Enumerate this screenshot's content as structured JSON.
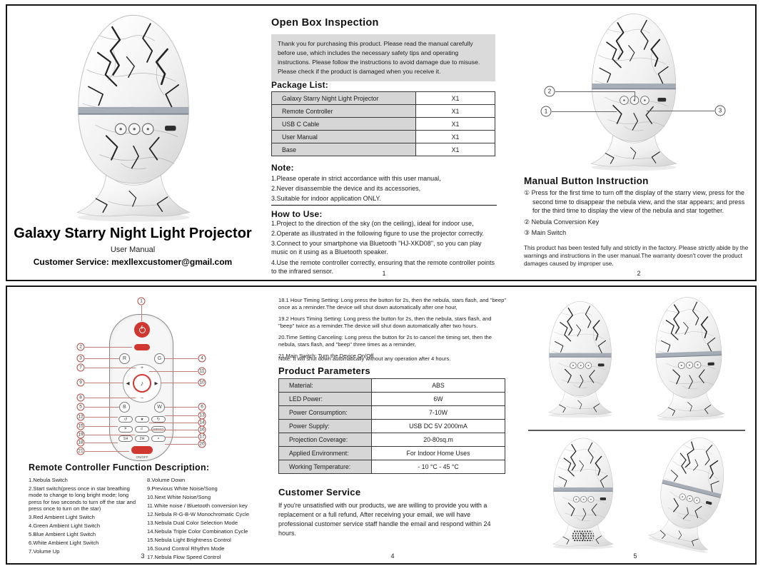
{
  "cover": {
    "title": "Galaxy Starry Night Light Projector",
    "subtitle": "User Manual",
    "customer_service": "Customer Service: mexllexcustomer@gmail.com"
  },
  "open_box": {
    "heading": "Open Box Inspection",
    "intro": "Thank you for purchasing this product. Please read the manual carefully before use, which includes the necessary safety tips and operating instructions. Please follow the instructions to avoid damage due to misuse. Please check if the product is damaged when you receive it.",
    "package_heading": "Package List:",
    "package_rows": [
      [
        "Galaxy Starry Night Light Projector",
        "X1"
      ],
      [
        "Remote Controller",
        "X1"
      ],
      [
        "USB C Cable",
        "X1"
      ],
      [
        "User Manual",
        "X1"
      ],
      [
        "Base",
        "X1"
      ]
    ],
    "note_heading": "Note:",
    "note_items": [
      "1.Please operate in strict accordance with this user manual,",
      "2.Never disassemble the device and its accessories,",
      "3.Suitable for indoor application ONLY."
    ],
    "howto_heading": "How to Use:",
    "howto_items": [
      "1.Project to the direction of the sky (on the ceiling), ideal for indoor use,",
      "2.Operate as illustrated in the following figure to use the projector correctly.",
      "3.Connect to your smartphone via Bluetooth \"HJ-XKD08\", so you can play music on it using as a Bluetooth speaker.",
      "4.Use the remote controller correctly, ensuring that the remote controller points to the infrared sensor."
    ],
    "page_number": "1"
  },
  "button_instruction": {
    "heading": "Manual Button Instruction",
    "items": [
      "① Press for the first time to turn off the display of the starry view, press for the second time to disappear the nebula view, and the star appears; and press for the third time to display the view of the nebula and star together.",
      "② Nebula Conversion Key",
      "③ Main Switch"
    ],
    "warranty": "This product has been tested fully and strictly in the factory. Please strictly abide by the warnings and instructions in the user manual.The warranty doesn't cover the product damages caused by improper use.",
    "egg_callouts": [
      "1",
      "2",
      "3"
    ],
    "page_number": "2"
  },
  "remote": {
    "heading": "Remote Controller Function Description:",
    "functions_left": [
      "1.Nebula Switch",
      "2.Start switch(press once in star breathing mode to change to long bright mode; long press for two seconds to turn off the star and press once to turn on the star)",
      "3.Red Ambient Light Switch",
      "4.Green Ambient Light Switch",
      "5.Blue Ambient Light Switch",
      "6.White Ambient Light Switch",
      "7.Volume Up"
    ],
    "functions_right": [
      "8.Volume Down",
      "9.Previous White Noise/Song",
      "10.Next White Noise/Song",
      "11.White noise / Bluetooth conversion key",
      "12.Nebula R-G-B-W Monochromatic Cycle",
      "13.Nebula Dual Color Selection Mode",
      "14.Nebula Triple Color Combination Cycle",
      "15.Nebula Light Brightness Control",
      "16.Sound Control Rhythm Mode",
      "17.Nebula Flow Speed Control"
    ],
    "callouts": [
      "1",
      "2",
      "3",
      "4",
      "5",
      "6",
      "7",
      "8",
      "9",
      "10",
      "11",
      "12",
      "13",
      "14",
      "15",
      "16",
      "17",
      "18",
      "19",
      "20",
      "21"
    ],
    "buttons": {
      "r": "R",
      "g": "G",
      "b": "B",
      "w": "W",
      "timer1": "1H",
      "timer2": "2H",
      "speed": "SPEED",
      "onoff": "ON/OFF"
    },
    "page_number": "3"
  },
  "parameters": {
    "timing_items": [
      "18.1 Hour Timing Setting: Long press the button for 2s, then the nebula, stars flash, and \"beep\" once as a reminder.The device will shut down automatically after one hour,",
      "19.2 Hours Timing Setting: Long press the button for 2s, then the nebula, stars flash, and \"beep\" twice as a reminder.The device will shut down automatically after two hours.",
      "20.Time Setting Canceling: Long press the button for 2s to cancel the timing set, then the nebula, stars flash, and \"beep\" three times as a reminder,",
      "21.Main Switch: Turn the Device On/Off"
    ],
    "timing_note": "Note: It will shut down automatically without any operation after 4 hours.",
    "heading": "Product Parameters",
    "rows": [
      [
        "Material:",
        "ABS"
      ],
      [
        "LED Power:",
        "6W"
      ],
      [
        "Power Consumption:",
        "7-10W"
      ],
      [
        "Power Supply:",
        "USB DC 5V 2000mA"
      ],
      [
        "Projection Coverage:",
        "20-80sq.m"
      ],
      [
        "Applied Environment:",
        "For Indoor Home Uses"
      ],
      [
        "Working Temperature:",
        "- 10 °C - 45 °C"
      ]
    ],
    "cs_heading": "Customer Service",
    "cs_text": "If you're unsatisfied with our products, we are willing to provide you with a replacement or a full refund, After receiving your email, we will have professional customer service staff handle the email and respond within 24 hours.",
    "page_number": "4"
  },
  "gallery": {
    "page_number": "5"
  },
  "icons": {
    "volume_up": "+",
    "volume_down": "−",
    "prev": "◀",
    "next": "▶",
    "music": "♪",
    "cycle_left": "↺",
    "star": "★",
    "cycle_right": "↻",
    "brightness": "☀",
    "rhythm": "♬",
    "timer_cancel": "×"
  },
  "colors": {
    "accent_red": "#cf3730",
    "table_label_bg": "#d6d6d6",
    "intro_bg": "#dadada",
    "band_gray": "#99a1ac"
  }
}
